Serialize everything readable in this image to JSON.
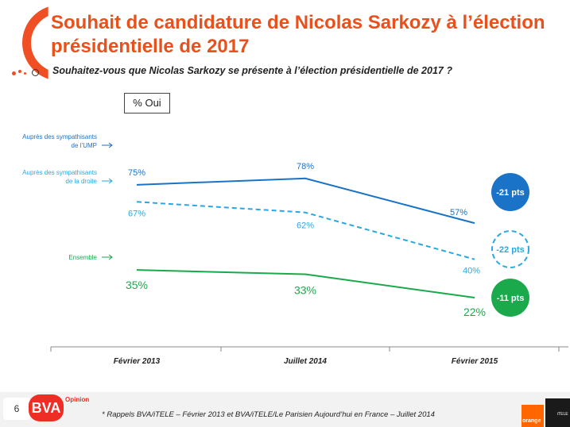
{
  "title": "Souhait de candidature de Nicolas Sarkozy à l’élection présidentielle de 2017",
  "question": "Souhaitez-vous que Nicolas Sarkozy se présente à l’élection présidentielle de 2017 ?",
  "unit_label": "% Oui",
  "footnote": "* Rappels BVA/iTELE – Février 2013 et BVA/iTELE/Le Parisien Aujourd’hui en France – Juillet 2014",
  "page_number": "6",
  "brand": {
    "logo": "BVA",
    "sub": "Opinion",
    "orange": "orange",
    "itele": "iTELE"
  },
  "colors": {
    "ump": "#1a73c6",
    "droite": "#2aa8e0",
    "ensemble": "#1aaa4c",
    "title": "#e8501c"
  },
  "chart_data": {
    "type": "line",
    "categories": [
      "Février 2013",
      "Juillet 2014",
      "Février 2015"
    ],
    "ylim": [
      0,
      100
    ],
    "grid": false,
    "series": [
      {
        "key": "ump",
        "name": "Auprès des sympathisants de l’UMP",
        "values": [
          75,
          78,
          57
        ],
        "labels": [
          "75%",
          "78%",
          "57%"
        ],
        "dashed": false,
        "badge": "-21 pts",
        "badge_style": "filled"
      },
      {
        "key": "droite",
        "name": "Auprès des sympathisants de la droite",
        "values": [
          67,
          62,
          40
        ],
        "labels": [
          "67%",
          "62%",
          "40%"
        ],
        "dashed": true,
        "badge": "-22 pts",
        "badge_style": "dashed-outline"
      },
      {
        "key": "ensemble",
        "name": "Ensemble",
        "values": [
          35,
          33,
          22
        ],
        "labels": [
          "35%",
          "33%",
          "22%"
        ],
        "dashed": false,
        "badge": "-11 pts",
        "badge_style": "filled"
      }
    ]
  }
}
